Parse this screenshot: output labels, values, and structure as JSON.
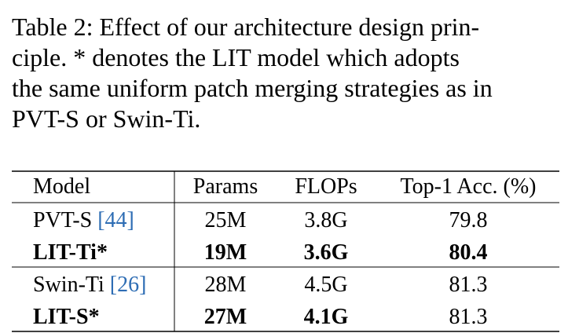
{
  "caption": {
    "lines": [
      "Table 2: Effect of our architecture design prin-",
      "ciple.  * denotes the LIT model which adopts",
      "the same uniform patch merging strategies as in",
      "PVT-S or Swin-Ti."
    ]
  },
  "table": {
    "header": [
      "Model",
      "Params",
      "FLOPs",
      "Top-1 Acc. (%)"
    ],
    "groups": [
      [
        {
          "model": {
            "text": "PVT-S",
            "cite": "[44]"
          },
          "cells": [
            "25M",
            "3.8G",
            "79.8"
          ],
          "bold": [
            false,
            false,
            false,
            false
          ]
        },
        {
          "model": {
            "text": "LIT-Ti*"
          },
          "cells": [
            "19M",
            "3.6G",
            "80.4"
          ],
          "bold": [
            true,
            true,
            true,
            true
          ]
        }
      ],
      [
        {
          "model": {
            "text": "Swin-Ti",
            "cite": "[26]"
          },
          "cells": [
            "28M",
            "4.5G",
            "81.3"
          ],
          "bold": [
            false,
            false,
            false,
            false
          ]
        },
        {
          "model": {
            "text": "LIT-S*"
          },
          "cells": [
            "27M",
            "4.1G",
            "81.3"
          ],
          "bold": [
            true,
            true,
            true,
            false
          ]
        }
      ]
    ]
  }
}
